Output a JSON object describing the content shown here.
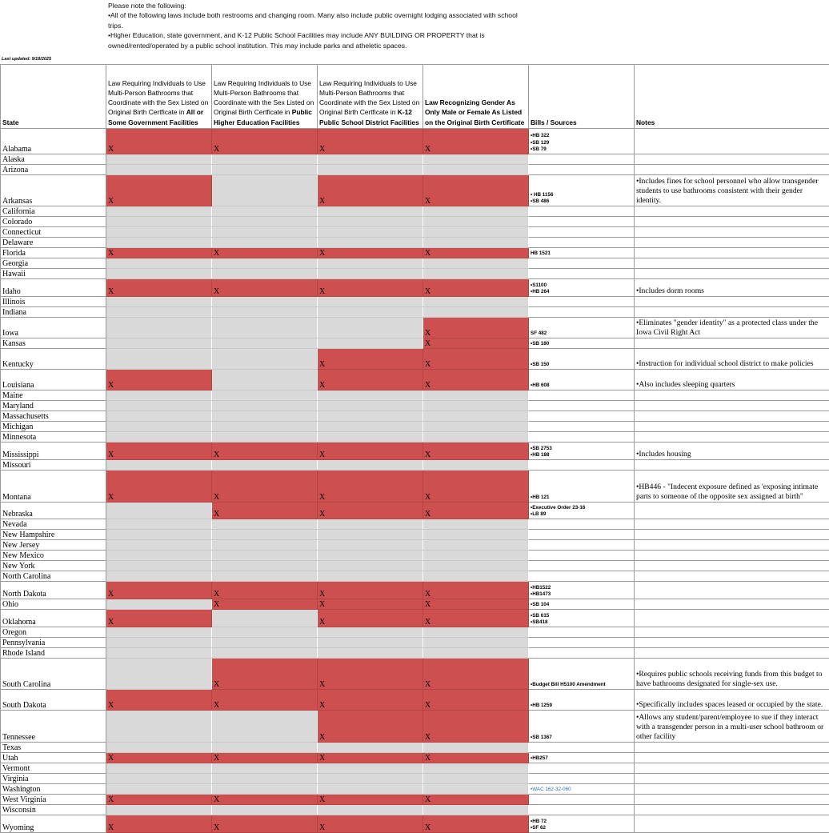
{
  "intro": [
    "Please note the following:",
    "•All of the following laws include both restrooms and changing room. Many also include public overnight lodging associated with school trips.",
    "•Higher Education, state government, and K-12 Public School Facilities may include ANY BUILDING OR PROPERTY that is owned/rented/operated by a public school institution.  This may include parks and atheletic spaces."
  ],
  "last_updated": "Last updated: 9/18/2025",
  "table": {
    "columns": [
      [
        {
          "text": "State",
          "bold": true
        }
      ],
      [
        {
          "text": "Law Requiring Individuals to Use Multi-Person Bathrooms that Coordinate with the Sex Listed on Original Birth Certficate in ",
          "bold": false
        },
        {
          "text": "All or Some Government Facilities",
          "bold": true
        }
      ],
      [
        {
          "text": "Law Requiring Individuals to Use Multi-Person Bathrooms that Coordinate with the Sex Listed on Original Birth Certficate in ",
          "bold": false
        },
        {
          "text": "Public Higher Education Facilities",
          "bold": true
        }
      ],
      [
        {
          "text": "Law Requiring Individuals to Use Multi-Person Bathrooms that Coordinate with the Sex Listed on Original Birth Certficate in ",
          "bold": false
        },
        {
          "text": "K-12 Public School District Facilities",
          "bold": true
        }
      ],
      [
        {
          "text": "Law Recognizing Gender As Only Male or Female As Listed on the Original Birth Certificate",
          "bold": true
        }
      ],
      [
        {
          "text": "Bills / Sources",
          "bold": true
        }
      ],
      [
        {
          "text": "Notes",
          "bold": true
        }
      ]
    ],
    "rows": [
      {
        "state": "Alabama",
        "cells": [
          "X",
          "X",
          "X",
          "X"
        ],
        "bills": [
          "•HB 322",
          "•SB 129",
          "•SB 79"
        ]
      },
      {
        "state": "Alaska",
        "cells": [
          null,
          null,
          null,
          null
        ]
      },
      {
        "state": "Arizona",
        "cells": [
          null,
          null,
          null,
          null
        ]
      },
      {
        "state": "Arkansas",
        "cells": [
          "X",
          null,
          "X",
          "X"
        ],
        "bills": [
          "• HB 1156",
          "•SB 486"
        ],
        "notes": "•Includes fines for school personnel who allow transgender students to use bathrooms consistent with their gender identity."
      },
      {
        "state": "California",
        "cells": [
          null,
          null,
          null,
          null
        ]
      },
      {
        "state": "Colorado",
        "cells": [
          null,
          null,
          null,
          null
        ]
      },
      {
        "state": "Connecticut",
        "cells": [
          null,
          null,
          null,
          null
        ]
      },
      {
        "state": "Delaware",
        "cells": [
          null,
          null,
          null,
          null
        ]
      },
      {
        "state": "Florida",
        "cells": [
          "X",
          "X",
          "X",
          "X"
        ],
        "bills": [
          "HB 1521"
        ]
      },
      {
        "state": "Georgia",
        "cells": [
          null,
          null,
          null,
          null
        ]
      },
      {
        "state": "Hawaii",
        "cells": [
          null,
          null,
          null,
          null
        ]
      },
      {
        "state": "Idaho",
        "cells": [
          "X",
          "X",
          "X",
          "X"
        ],
        "bills": [
          "•S1100",
          "•HB 264"
        ],
        "notes": "•Includes dorm rooms"
      },
      {
        "state": "Illinois",
        "cells": [
          null,
          null,
          null,
          null
        ]
      },
      {
        "state": "Indiana",
        "cells": [
          null,
          null,
          null,
          null
        ]
      },
      {
        "state": "Iowa",
        "cells": [
          null,
          null,
          null,
          "X"
        ],
        "bills": [
          "SF 482"
        ],
        "notes": "•Eliminates \"gender identity\" as a protected class under the Iowa Civil Right Act"
      },
      {
        "state": "Kansas",
        "cells": [
          null,
          null,
          null,
          "X"
        ],
        "bills": [
          "•SB 180"
        ]
      },
      {
        "state": "Kentucky",
        "cells": [
          null,
          null,
          "X",
          "X"
        ],
        "bills": [
          "•SB 150"
        ],
        "notes": "•Instruction for individual school district to make policies"
      },
      {
        "state": "Louisiana",
        "cells": [
          "X",
          null,
          "X",
          "X"
        ],
        "bills": [
          "•HB 608"
        ],
        "notes": "•Also includes sleeping quarters"
      },
      {
        "state": "Maine",
        "cells": [
          null,
          null,
          null,
          null
        ]
      },
      {
        "state": "Maryland",
        "cells": [
          null,
          null,
          null,
          null
        ]
      },
      {
        "state": "Massachusetts",
        "cells": [
          null,
          null,
          null,
          null
        ]
      },
      {
        "state": "Michigan",
        "cells": [
          null,
          null,
          null,
          null
        ]
      },
      {
        "state": "Minnesota",
        "cells": [
          null,
          null,
          null,
          null
        ]
      },
      {
        "state": "Mississippi",
        "cells": [
          "X",
          "X",
          "X",
          "X"
        ],
        "bills": [
          "•SB 2753",
          "•HB 188"
        ],
        "notes": "•Includes housing"
      },
      {
        "state": "Missouri",
        "cells": [
          null,
          null,
          null,
          null
        ]
      },
      {
        "state": "Montana",
        "cells": [
          "X",
          "X",
          "X",
          "X"
        ],
        "bills": [
          "•HB 121"
        ],
        "notes": "•HB446 - \"Indecent exposure defined as 'exposing intimate parts to someone of the opposite sex assigned at birth\""
      },
      {
        "state": "Nebraska",
        "cells": [
          null,
          "X",
          "X",
          "X"
        ],
        "bills": [
          "•Executive Order 23-16",
          "•LB 89"
        ]
      },
      {
        "state": "Nevada",
        "cells": [
          null,
          null,
          null,
          null
        ]
      },
      {
        "state": "New Hampshire",
        "cells": [
          null,
          null,
          null,
          null
        ]
      },
      {
        "state": "New Jersey",
        "cells": [
          null,
          null,
          null,
          null
        ]
      },
      {
        "state": "New Mexico",
        "cells": [
          null,
          null,
          null,
          null
        ]
      },
      {
        "state": "New York",
        "cells": [
          null,
          null,
          null,
          null
        ]
      },
      {
        "state": "North Carolina",
        "cells": [
          null,
          null,
          null,
          null
        ]
      },
      {
        "state": "North Dakota",
        "cells": [
          "X",
          "X",
          "X",
          "X"
        ],
        "bills": [
          "•HB1522",
          "•HB1473"
        ]
      },
      {
        "state": "Ohio",
        "cells": [
          null,
          "X",
          "X",
          "X"
        ],
        "bills": [
          "•SB 104"
        ]
      },
      {
        "state": "Oklahoma",
        "cells": [
          "X",
          null,
          "X",
          "X"
        ],
        "bills": [
          "•SB 615",
          "•SB418"
        ]
      },
      {
        "state": "Oregon",
        "cells": [
          null,
          null,
          null,
          null
        ]
      },
      {
        "state": "Pennsylvania",
        "cells": [
          null,
          null,
          null,
          null
        ]
      },
      {
        "state": "Rhode Island",
        "cells": [
          null,
          null,
          null,
          null
        ]
      },
      {
        "state": "South Carolina",
        "cells": [
          null,
          "X",
          "X",
          "X"
        ],
        "bills": [
          "•Budget Bill H5100 Amendment"
        ],
        "notes": "•Requires public schools receiving funds from this budget to have bathrooms designated for single-sex use."
      },
      {
        "state": "South Dakota",
        "cells": [
          "X",
          "X",
          "X",
          "X"
        ],
        "bills": [
          "•HB 1259"
        ],
        "notes": "•Specifically includes spaces leased or occupied by the state."
      },
      {
        "state": "Tennessee",
        "cells": [
          null,
          null,
          "X",
          "X"
        ],
        "bills": [
          "•SB 1367"
        ],
        "notes": "•Allows any student/parent/employee to sue if they interact with a transgender person in a multi-user school bathroom or other facility"
      },
      {
        "state": "Texas",
        "cells": [
          null,
          null,
          null,
          null
        ]
      },
      {
        "state": "Utah",
        "cells": [
          "X",
          "X",
          "X",
          "X"
        ],
        "bills": [
          "•HB257"
        ]
      },
      {
        "state": "Vermont",
        "cells": [
          null,
          null,
          null,
          null
        ]
      },
      {
        "state": "Virginia",
        "cells": [
          null,
          null,
          null,
          null
        ]
      },
      {
        "state": "Washington",
        "cells": [
          null,
          null,
          null,
          null
        ],
        "bills": [
          "•WAC 162-32-060"
        ],
        "bills_style": "link"
      },
      {
        "state": "West Virginia",
        "cells": [
          "X",
          "X",
          "X",
          "X"
        ]
      },
      {
        "state": "Wisconsin",
        "cells": [
          null,
          null,
          null,
          null
        ]
      },
      {
        "state": "Wyoming",
        "cells": [
          "X",
          "X",
          "X",
          "X"
        ],
        "bills": [
          "•HB 72",
          "•SF 62"
        ]
      }
    ]
  }
}
